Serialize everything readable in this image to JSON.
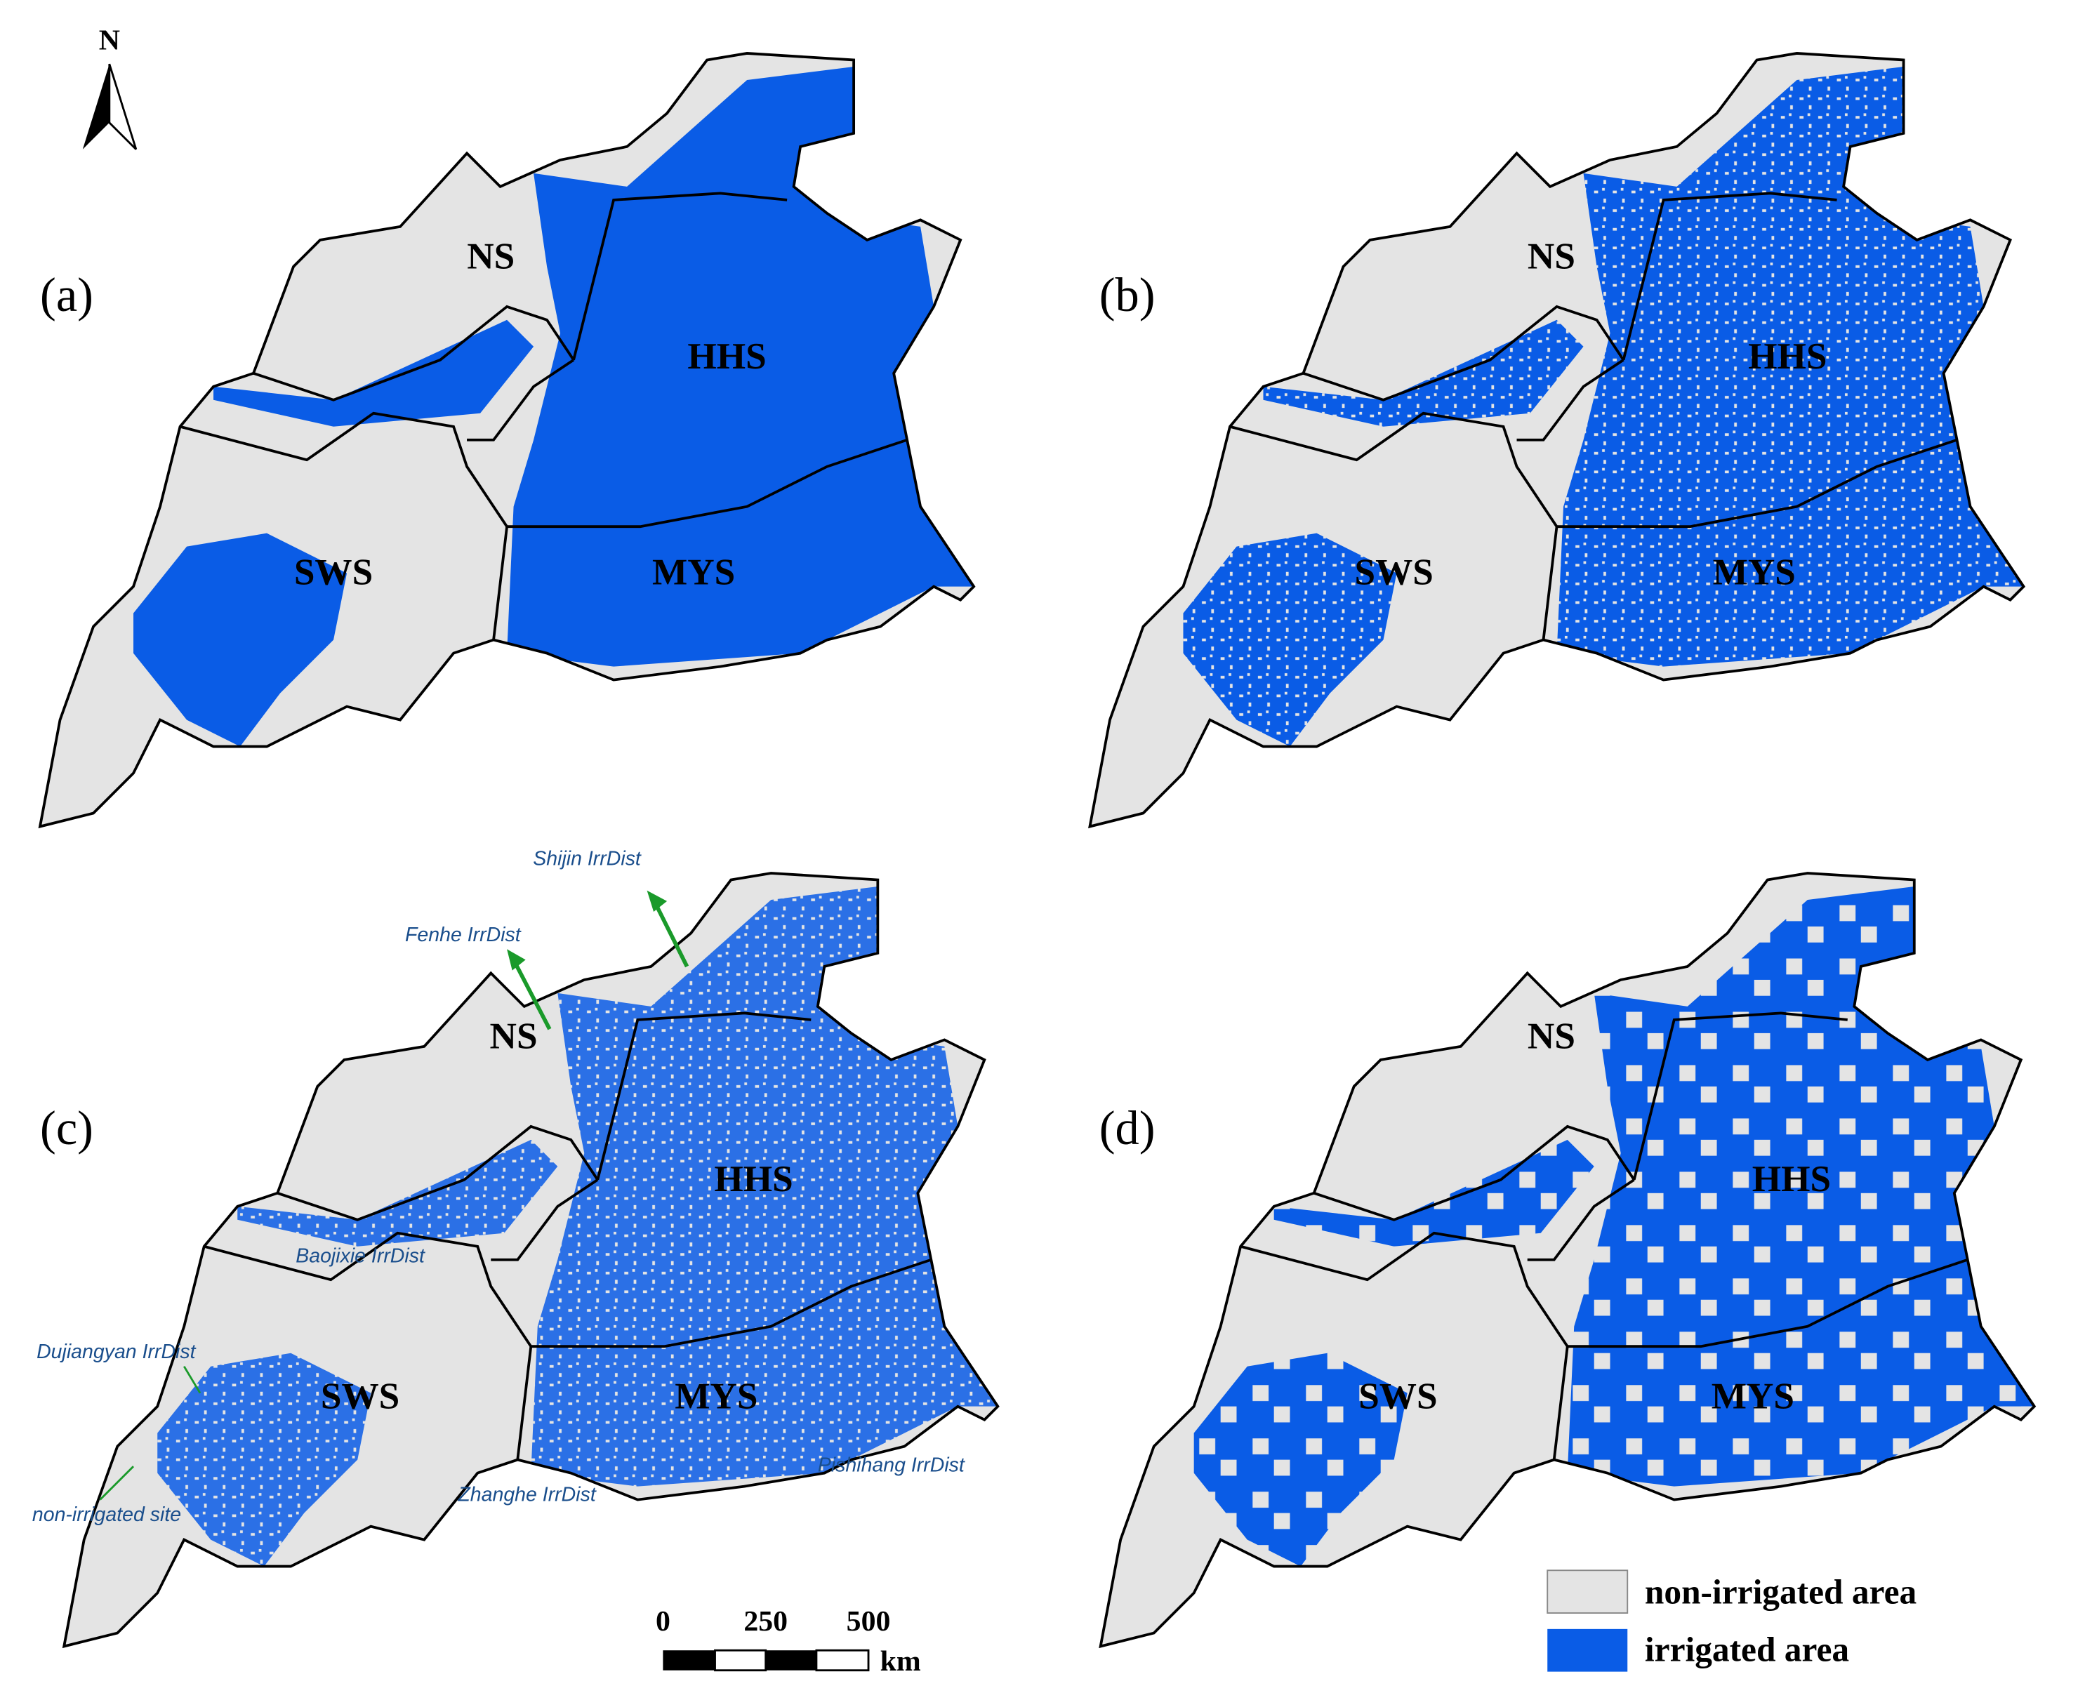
{
  "north": "N",
  "panels": [
    {
      "label": "(a)",
      "regions": [
        "NS",
        "HHS",
        "SWS",
        "MYS"
      ]
    },
    {
      "label": "(b)",
      "regions": [
        "NS",
        "HHS",
        "SWS",
        "MYS"
      ]
    },
    {
      "label": "(c)",
      "regions": [
        "NS",
        "HHS",
        "SWS",
        "MYS"
      ]
    },
    {
      "label": "(d)",
      "regions": [
        "NS",
        "HHS",
        "SWS",
        "MYS"
      ]
    }
  ],
  "irrigation_districts": [
    "Shijin IrrDist",
    "Fenhe IrrDist",
    "Baojixie IrrDist",
    "Dujiangyan IrrDist",
    "non-irrigated site",
    "Zhanghe IrrDist",
    "Pishihang IrrDist"
  ],
  "scale_bar": {
    "ticks": [
      "0",
      "250",
      "500"
    ],
    "unit": "km"
  },
  "legend": [
    "non-irrigated area",
    "irrigated area"
  ]
}
